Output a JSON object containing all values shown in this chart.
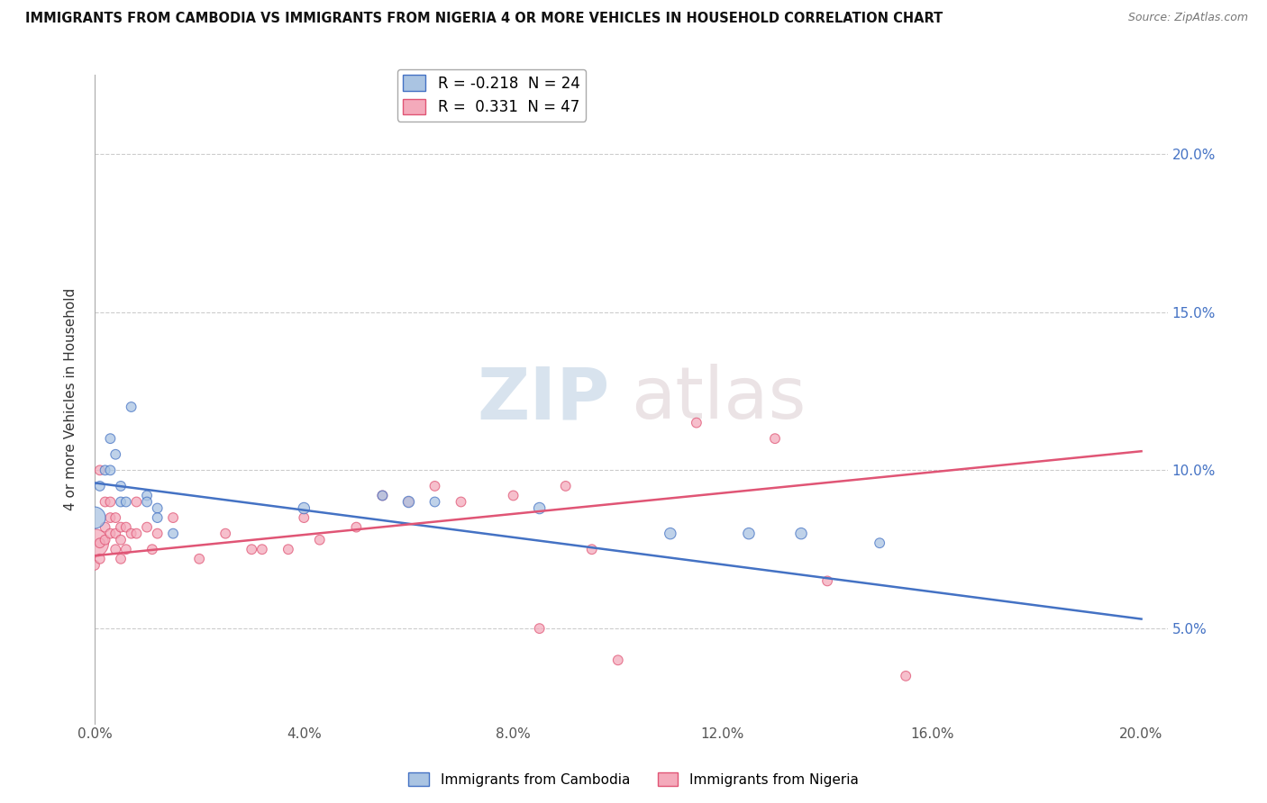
{
  "title": "IMMIGRANTS FROM CAMBODIA VS IMMIGRANTS FROM NIGERIA 4 OR MORE VEHICLES IN HOUSEHOLD CORRELATION CHART",
  "source": "Source: ZipAtlas.com",
  "ylabel": "4 or more Vehicles in Household",
  "xlim": [
    0.0,
    0.205
  ],
  "ylim": [
    0.02,
    0.225
  ],
  "xticks": [
    0.0,
    0.04,
    0.08,
    0.12,
    0.16,
    0.2
  ],
  "yticks": [
    0.05,
    0.1,
    0.15,
    0.2
  ],
  "ytick_labels": [
    "5.0%",
    "10.0%",
    "15.0%",
    "20.0%"
  ],
  "xtick_labels": [
    "0.0%",
    "4.0%",
    "8.0%",
    "12.0%",
    "16.0%",
    "20.0%"
  ],
  "legend_R_cambodia": "-0.218",
  "legend_N_cambodia": "24",
  "legend_R_nigeria": "0.331",
  "legend_N_nigeria": "47",
  "color_cambodia": "#aac4e2",
  "color_nigeria": "#f4aabb",
  "color_line_cambodia": "#4472c4",
  "color_line_nigeria": "#e05575",
  "watermark_zip": "ZIP",
  "watermark_atlas": "atlas",
  "cambodia_line_start_y": 0.096,
  "cambodia_line_end_y": 0.053,
  "nigeria_line_start_y": 0.073,
  "nigeria_line_end_y": 0.106,
  "cambodia_x": [
    0.0,
    0.001,
    0.002,
    0.003,
    0.003,
    0.004,
    0.005,
    0.005,
    0.006,
    0.007,
    0.01,
    0.01,
    0.012,
    0.012,
    0.015,
    0.04,
    0.055,
    0.06,
    0.065,
    0.085,
    0.11,
    0.125,
    0.135,
    0.15
  ],
  "cambodia_y": [
    0.085,
    0.095,
    0.1,
    0.1,
    0.11,
    0.105,
    0.095,
    0.09,
    0.09,
    0.12,
    0.092,
    0.09,
    0.088,
    0.085,
    0.08,
    0.088,
    0.092,
    0.09,
    0.09,
    0.088,
    0.08,
    0.08,
    0.08,
    0.077
  ],
  "cambodia_sizes": [
    300,
    60,
    60,
    60,
    60,
    60,
    60,
    60,
    60,
    60,
    60,
    60,
    60,
    60,
    60,
    80,
    60,
    80,
    60,
    80,
    80,
    80,
    80,
    60
  ],
  "cambodia_special_x": [
    0.0
  ],
  "cambodia_special_y": [
    0.085
  ],
  "cambodia_special_s": [
    300
  ],
  "nigeria_x": [
    0.0,
    0.0,
    0.001,
    0.001,
    0.001,
    0.002,
    0.002,
    0.002,
    0.003,
    0.003,
    0.003,
    0.004,
    0.004,
    0.004,
    0.005,
    0.005,
    0.005,
    0.006,
    0.006,
    0.007,
    0.008,
    0.008,
    0.01,
    0.011,
    0.012,
    0.015,
    0.02,
    0.025,
    0.03,
    0.032,
    0.037,
    0.04,
    0.043,
    0.05,
    0.055,
    0.06,
    0.065,
    0.07,
    0.08,
    0.085,
    0.09,
    0.095,
    0.1,
    0.115,
    0.13,
    0.14,
    0.155
  ],
  "nigeria_y": [
    0.07,
    0.077,
    0.072,
    0.077,
    0.1,
    0.078,
    0.082,
    0.09,
    0.08,
    0.085,
    0.09,
    0.075,
    0.08,
    0.085,
    0.072,
    0.078,
    0.082,
    0.075,
    0.082,
    0.08,
    0.08,
    0.09,
    0.082,
    0.075,
    0.08,
    0.085,
    0.072,
    0.08,
    0.075,
    0.075,
    0.075,
    0.085,
    0.078,
    0.082,
    0.092,
    0.09,
    0.095,
    0.09,
    0.092,
    0.05,
    0.095,
    0.075,
    0.04,
    0.115,
    0.11,
    0.065,
    0.035
  ],
  "nigeria_sizes": [
    60,
    500,
    60,
    60,
    60,
    60,
    60,
    60,
    60,
    60,
    60,
    60,
    60,
    60,
    60,
    60,
    60,
    60,
    60,
    60,
    60,
    60,
    60,
    60,
    60,
    60,
    60,
    60,
    60,
    60,
    60,
    60,
    60,
    60,
    60,
    60,
    60,
    60,
    60,
    60,
    60,
    60,
    60,
    60,
    60,
    60,
    60
  ]
}
